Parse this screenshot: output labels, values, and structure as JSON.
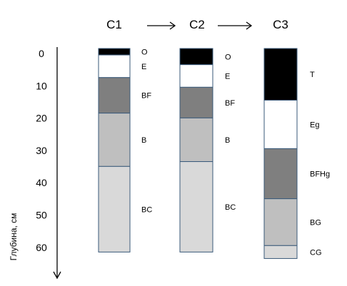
{
  "profiles": [
    {
      "id": "C1",
      "title": "C1",
      "horizons": [
        {
          "label": "O",
          "top": 0,
          "bottom": 2,
          "color": "#000000"
        },
        {
          "label": "E",
          "top": 2,
          "bottom": 9,
          "color": "#ffffff"
        },
        {
          "label": "BF",
          "top": 9,
          "bottom": 20,
          "color": "#7f7f7f"
        },
        {
          "label": "B",
          "top": 20,
          "bottom": 36.5,
          "color": "#bfbfbf"
        },
        {
          "label": "BC",
          "top": 36.5,
          "bottom": 63,
          "color": "#d9d9d9"
        }
      ]
    },
    {
      "id": "C2",
      "title": "C2",
      "horizons": [
        {
          "label": "O",
          "top": 0,
          "bottom": 5,
          "color": "#000000"
        },
        {
          "label": "E",
          "top": 5,
          "bottom": 12,
          "color": "#ffffff"
        },
        {
          "label": "BF",
          "top": 12,
          "bottom": 21.5,
          "color": "#7f7f7f"
        },
        {
          "label": "B",
          "top": 21.5,
          "bottom": 35,
          "color": "#bfbfbf"
        },
        {
          "label": "BC",
          "top": 35,
          "bottom": 63,
          "color": "#d9d9d9"
        }
      ]
    },
    {
      "id": "C3",
      "title": "C3",
      "horizons": [
        {
          "label": "T",
          "top": 0,
          "bottom": 16,
          "color": "#000000"
        },
        {
          "label": "Eg",
          "top": 16,
          "bottom": 31,
          "color": "#ffffff"
        },
        {
          "label": "BFHg",
          "top": 31,
          "bottom": 46.5,
          "color": "#7f7f7f"
        },
        {
          "label": "BG",
          "top": 46.5,
          "bottom": 61,
          "color": "#bfbfbf"
        },
        {
          "label": "CG",
          "top": 61,
          "bottom": 65,
          "color": "#d9d9d9"
        }
      ]
    }
  ],
  "axis": {
    "label": "Глубина, см",
    "ticks": [
      "0",
      "10",
      "20",
      "30",
      "40",
      "50",
      "60"
    ],
    "tick_values": [
      0,
      10,
      20,
      30,
      40,
      50,
      60
    ]
  },
  "sequence_arrows": 2
}
